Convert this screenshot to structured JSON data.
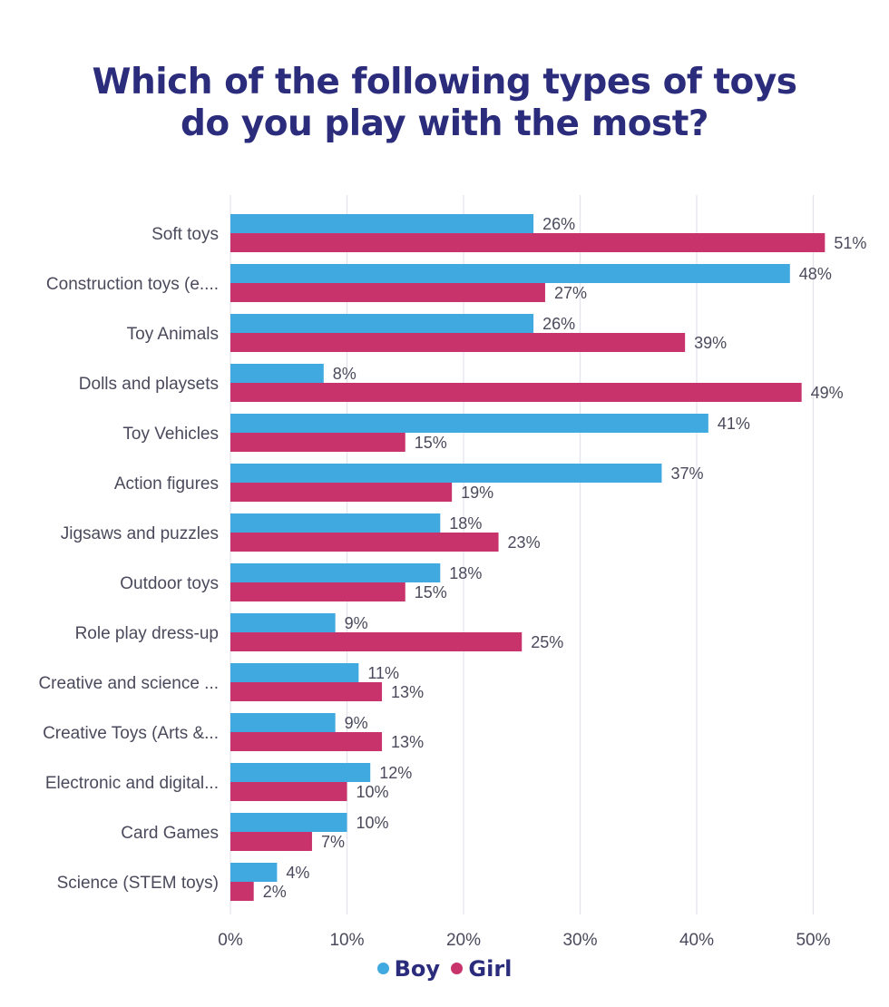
{
  "chart_data": {
    "type": "bar",
    "orientation": "horizontal",
    "title_lines": [
      "Which of the following types of toys",
      "do you play with the most?"
    ],
    "categories": [
      "Soft toys",
      "Construction toys (e....",
      "Toy Animals",
      "Dolls and playsets",
      "Toy Vehicles",
      "Action figures",
      "Jigsaws and puzzles",
      "Outdoor toys",
      "Role play dress-up",
      "Creative and science ...",
      "Creative Toys (Arts &...",
      "Electronic and digital...",
      "Card Games",
      "Science (STEM toys)"
    ],
    "series": [
      {
        "name": "Boy",
        "color": "#3fa9e0",
        "values": [
          26,
          48,
          26,
          8,
          41,
          37,
          18,
          18,
          9,
          11,
          9,
          12,
          10,
          4
        ]
      },
      {
        "name": "Girl",
        "color": "#c8336b",
        "values": [
          51,
          27,
          39,
          49,
          15,
          19,
          23,
          15,
          25,
          13,
          13,
          10,
          7,
          2
        ]
      }
    ],
    "value_labels": {
      "Boy": [
        "26%",
        "48%",
        "26%",
        "8%",
        "41%",
        "37%",
        "18%",
        "18%",
        "9%",
        "11%",
        "9%",
        "12%",
        "10%",
        "4%"
      ],
      "Girl": [
        "51%",
        "27%",
        "39%",
        "49%",
        "15%",
        "19%",
        "23%",
        "15%",
        "25%",
        "13%",
        "13%",
        "10%",
        "7%",
        "2%"
      ]
    },
    "x_ticks": [
      0,
      10,
      20,
      30,
      40,
      50
    ],
    "x_tick_labels": [
      "0%",
      "10%",
      "20%",
      "30%",
      "40%",
      "50%"
    ],
    "xlim": [
      0,
      50.5
    ],
    "grid": "vertical",
    "legend": "bottom-center",
    "gridline_color": "#e4e4ee",
    "label_color": "#4a4a5c",
    "title_color": "#2b2c7c"
  }
}
